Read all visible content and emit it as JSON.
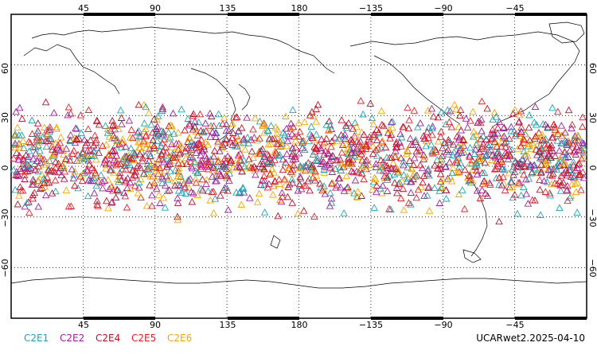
{
  "map": {
    "projection": "equirectangular",
    "center_longitude": 180,
    "lat_range": [
      -90,
      90
    ],
    "gridlines": "dotted",
    "gridline_lons": [
      45,
      90,
      135,
      180,
      225,
      270,
      315
    ],
    "gridline_lats": [
      60,
      30,
      0,
      -30,
      -60
    ],
    "coastline_color": "#000000",
    "x_tick_labels": [
      "45",
      "90",
      "135",
      "180",
      "−135",
      "−90",
      "−45"
    ],
    "y_tick_labels": [
      "60",
      "30",
      "0",
      "−30",
      "−60"
    ]
  },
  "legend": {
    "items": [
      {
        "label": "C2E1",
        "color": "#1aa6b7"
      },
      {
        "label": "C2E2",
        "color": "#a020a0"
      },
      {
        "label": "C2E4",
        "color": "#c0102a"
      },
      {
        "label": "C2E5",
        "color": "#e8202a"
      },
      {
        "label": "C2E6",
        "color": "#f5a800"
      }
    ]
  },
  "marker_symbol": "triangle",
  "observation_lat_band": [
    -35,
    45
  ],
  "footer": {
    "product_label": "UCARwet2.2025-04-10"
  }
}
